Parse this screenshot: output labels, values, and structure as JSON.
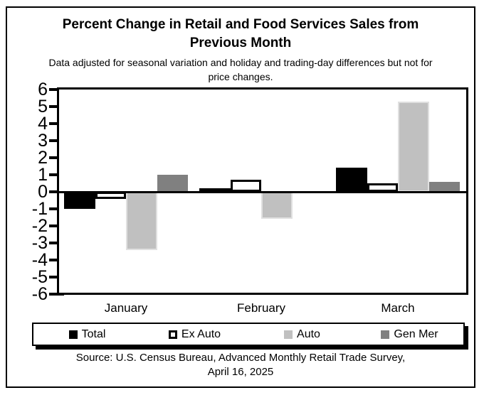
{
  "title": {
    "line1": "Percent Change in Retail and Food Services Sales from",
    "line2": "Previous Month"
  },
  "subtitle": {
    "line1": "Data adjusted for seasonal variation and holiday and trading-day differences but not for",
    "line2": "price changes."
  },
  "source": {
    "line1": "Source: U.S. Census Bureau, Advanced Monthly Retail Trade Survey,",
    "line2": "April 16, 2025"
  },
  "chart_data": {
    "type": "bar",
    "categories": [
      "January",
      "February",
      "March"
    ],
    "series": [
      {
        "name": "Total",
        "color": "#000000",
        "values": [
          -1.0,
          0.2,
          1.4
        ]
      },
      {
        "name": "Ex Auto",
        "color": "#ffffff",
        "values": [
          -0.4,
          0.7,
          0.5
        ]
      },
      {
        "name": "Auto",
        "color": "#c0c0c0",
        "values": [
          -3.4,
          -1.6,
          5.3
        ]
      },
      {
        "name": "Gen Mer",
        "color": "#808080",
        "values": [
          1.0,
          0.0,
          0.6
        ]
      }
    ],
    "ylabel": "",
    "xlabel": "",
    "ylim": [
      -6,
      6
    ],
    "ytick_step": 1,
    "y_ticks": [
      6,
      5,
      4,
      3,
      2,
      1,
      0,
      -1,
      -2,
      -3,
      -4,
      -5,
      -6
    ],
    "grid": false,
    "legend_position": "bottom"
  },
  "colors": {
    "axis": "#000000",
    "background": "#ffffff",
    "silver_bar_edge": "#e0e0e0"
  }
}
